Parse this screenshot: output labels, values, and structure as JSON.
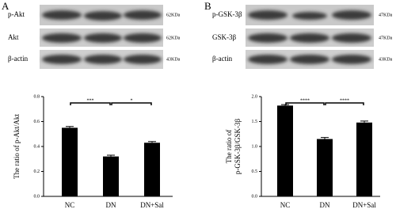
{
  "panels": [
    {
      "label": "A",
      "blot": [
        {
          "name": "p-Akt",
          "size": "62KDa"
        },
        {
          "name": "Akt",
          "size": "62KDa"
        },
        {
          "name": "β-actin",
          "size": "43KDa"
        }
      ]
    },
    {
      "label": "B",
      "blot": [
        {
          "name": "p-GSK-3β",
          "size": "47KDa"
        },
        {
          "name": "GSK-3β",
          "size": "47KDa"
        },
        {
          "name": "β-actin",
          "size": "43KDa"
        }
      ]
    }
  ],
  "chart_data": [
    {
      "type": "bar",
      "ylabel": [
        "The ratio of p-Akt/Akt"
      ],
      "categories": [
        "NC",
        "DN",
        "DN+Sal"
      ],
      "series": [
        {
          "color": "#000000",
          "values": [
            0.55,
            0.32,
            0.43
          ],
          "errors": [
            0.01,
            0.01,
            0.01
          ]
        }
      ],
      "significance": [
        "***",
        "*"
      ],
      "ylim": [
        0,
        0.8
      ],
      "yticks": [
        {
          "value": 0,
          "label": "0.0"
        },
        {
          "value": 0.2,
          "label": "0.2"
        },
        {
          "value": 0.4,
          "label": "0.4"
        },
        {
          "value": 0.6,
          "label": "0.6"
        },
        {
          "value": 0.8,
          "label": "0.8"
        }
      ]
    },
    {
      "type": "bar",
      "ylabel": [
        "The ratio of",
        "p-GSK-3β/GSK-3β"
      ],
      "categories": [
        "NC",
        "DN",
        "DN+Sal"
      ],
      "series": [
        {
          "color": "#000000",
          "values": [
            1.82,
            1.15,
            1.48
          ],
          "errors": [
            0.02,
            0.03,
            0.03
          ]
        }
      ],
      "significance": [
        "****",
        "****"
      ],
      "ylim": [
        0,
        2
      ],
      "yticks": [
        {
          "value": 0,
          "label": "0.0"
        },
        {
          "value": 0.5,
          "label": "0.5"
        },
        {
          "value": 1,
          "label": "1.0"
        },
        {
          "value": 1.5,
          "label": "1.5"
        },
        {
          "value": 2,
          "label": "2.0"
        }
      ]
    }
  ]
}
